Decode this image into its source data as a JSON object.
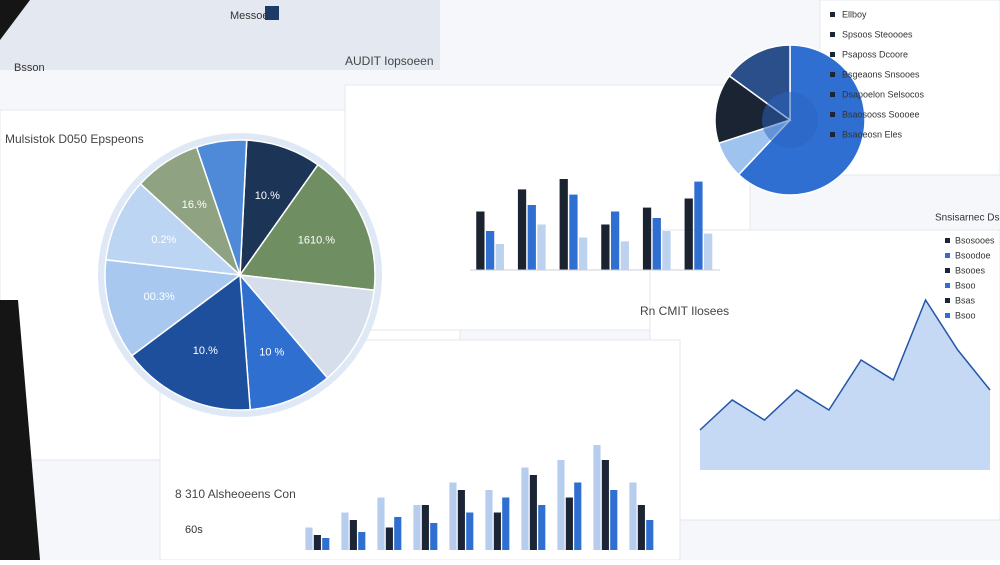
{
  "header": {
    "tab": "Bsson",
    "menu": "Messoeo",
    "title": "AUDIT Iopsoeen"
  },
  "chart_data": [
    {
      "type": "pie",
      "title": "Mulsistok D050 Epspeons",
      "categories": [
        "10.%",
        "1610.%",
        null,
        "10 %",
        "10.%",
        "00.3%",
        "0.2%",
        "16.%",
        null
      ],
      "values": [
        9,
        17,
        12,
        10,
        16,
        12,
        10,
        8,
        6
      ],
      "colors": [
        "#1c3557",
        "#6f8f62",
        "#d5deea",
        "#2e6fd0",
        "#1d4f9c",
        "#a9c8ef",
        "#bcd5f3",
        "#8fa383",
        "#4f8ad8"
      ]
    },
    {
      "type": "bar",
      "categories": [
        null,
        null,
        null,
        null,
        null,
        null
      ],
      "series": [
        {
          "name": null,
          "color": "#1b2230",
          "values": [
            45,
            62,
            70,
            35,
            48,
            55
          ]
        },
        {
          "name": null,
          "color": "#2f6fd1",
          "values": [
            30,
            50,
            58,
            45,
            40,
            68
          ]
        },
        {
          "name": null,
          "color": "#bcd2ef",
          "values": [
            20,
            35,
            25,
            22,
            30,
            28
          ]
        }
      ],
      "ylim": [
        0,
        100
      ]
    },
    {
      "type": "pie",
      "values": [
        62,
        8,
        15,
        15
      ],
      "colors": [
        "#2f6fd1",
        "#9ec3ef",
        "#1a2433",
        "#2b4f8a"
      ]
    },
    {
      "type": "area",
      "title": "Rn CMIT Ilosees",
      "categories": [
        null,
        null,
        null,
        null,
        null,
        null,
        null,
        null,
        null,
        null
      ],
      "values": [
        20,
        35,
        25,
        40,
        30,
        55,
        45,
        85,
        60,
        40
      ],
      "color": "#5a8fe0",
      "ylim": [
        0,
        100
      ]
    },
    {
      "type": "bar",
      "title": "8 310 Alsheoeens Con",
      "y_label": "60s",
      "categories": [
        null,
        null,
        null,
        null,
        null,
        null,
        null,
        null,
        null,
        null
      ],
      "series": [
        {
          "name": null,
          "color": "#b7cdee",
          "values": [
            15,
            25,
            35,
            30,
            45,
            40,
            55,
            60,
            70,
            45
          ]
        },
        {
          "name": null,
          "color": "#1c2535",
          "values": [
            10,
            20,
            15,
            30,
            40,
            25,
            50,
            35,
            60,
            30
          ]
        },
        {
          "name": null,
          "color": "#2f6fd1",
          "values": [
            8,
            12,
            22,
            18,
            25,
            35,
            30,
            45,
            40,
            20
          ]
        }
      ],
      "ylim": [
        0,
        100
      ]
    }
  ],
  "list_top": [
    "Ellboy",
    "Spsoos Steoooes",
    "Psaposs Dcoore",
    "Bsgeaons Snsooes",
    "Dsapoelon Selsocos",
    "Bsaosooss Soooee",
    "Bsaoeosn Eles"
  ],
  "list_right": {
    "title": "Snsisarnec Dsoeos",
    "items": [
      "Bsosooes",
      "Bsoodoe",
      "Bsooes",
      "Bsoo",
      "Bsas",
      "Bsoo"
    ]
  }
}
